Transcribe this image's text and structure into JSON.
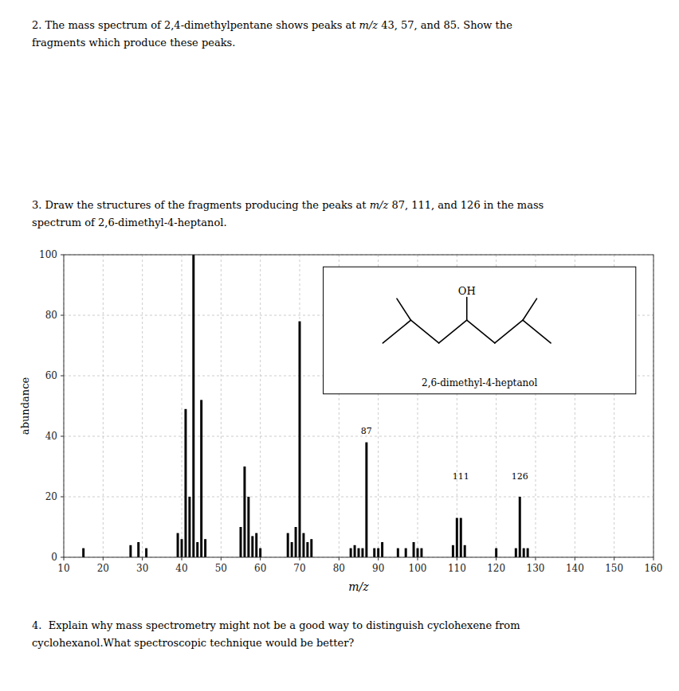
{
  "chart_data": {
    "type": "bar",
    "x": [
      15,
      27,
      29,
      31,
      39,
      40,
      41,
      42,
      43,
      44,
      45,
      46,
      55,
      56,
      57,
      58,
      59,
      60,
      67,
      68,
      69,
      70,
      71,
      72,
      73,
      83,
      84,
      85,
      86,
      87,
      89,
      90,
      91,
      95,
      97,
      99,
      100,
      101,
      109,
      110,
      111,
      112,
      120,
      125,
      126,
      127,
      128
    ],
    "values": [
      3,
      4,
      5,
      3,
      8,
      6,
      49,
      20,
      100,
      5,
      52,
      6,
      10,
      30,
      20,
      7,
      8,
      3,
      8,
      5,
      10,
      78,
      8,
      5,
      6,
      3,
      4,
      3,
      3,
      38,
      3,
      3,
      5,
      3,
      3,
      5,
      3,
      3,
      4,
      13,
      13,
      4,
      3,
      3,
      20,
      3,
      3
    ],
    "color": "#000000",
    "xlabel": "m/z",
    "ylabel": "abundance",
    "xlim": [
      10,
      160
    ],
    "ylim": [
      0,
      100
    ],
    "xticks": [
      10,
      20,
      30,
      40,
      50,
      60,
      70,
      80,
      90,
      100,
      110,
      120,
      130,
      140,
      150,
      160
    ],
    "yticks": [
      0,
      20,
      40,
      60,
      80,
      100
    ],
    "grid": true,
    "annotations": [
      {
        "text": "87",
        "x": 87,
        "y": 40
      },
      {
        "text": "111",
        "x": 111,
        "y": 25
      },
      {
        "text": "126",
        "x": 126,
        "y": 25
      }
    ],
    "inset": {
      "substituent": "OH",
      "label": "2,6-dimethyl-4-heptanol"
    }
  },
  "questions": [
    [
      [
        "2. The mass spectrum of 2,4-dimethylpentane shows peaks at ",
        "m/z",
        " 43, 57, and 85. Show the"
      ],
      [
        "fragments which produce these peaks."
      ]
    ],
    [
      [
        "3. Draw the structures of the fragments producing the peaks at ",
        "m/z",
        " 87, 111, and 126 in the mass"
      ],
      [
        "spectrum of 2,6-dimethyl-4-heptanol."
      ]
    ],
    [
      [
        "4.  Explain why mass spectrometry might not be a good way to distinguish cyclohexene from"
      ],
      [
        "cyclohexanol.What spectroscopic technique would be better?"
      ]
    ]
  ]
}
